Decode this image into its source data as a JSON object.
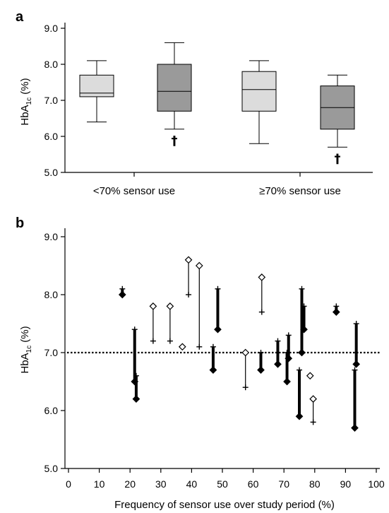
{
  "chart_data": [
    {
      "panel": "a",
      "type": "box",
      "ylabel": "HbA1c (%)",
      "ylim": [
        5.0,
        9.0
      ],
      "yticks": [
        "5.0",
        "6.0",
        "7.0",
        "8.0",
        "9.0"
      ],
      "categories": [
        "<70% sensor use",
        "≥70% sensor use"
      ],
      "marker": "†",
      "colors": {
        "light_box": "#dcdcdc",
        "dark_box": "#9a9a9a"
      },
      "boxes": [
        {
          "group": "<70% sensor use",
          "shade": "light",
          "min": 6.4,
          "q1": 7.1,
          "median": 7.2,
          "q3": 7.7,
          "max": 8.1,
          "marker": false
        },
        {
          "group": "<70% sensor use",
          "shade": "dark",
          "min": 6.2,
          "q1": 6.7,
          "median": 7.25,
          "q3": 8.0,
          "max": 8.6,
          "marker": true
        },
        {
          "group": "≥70% sensor use",
          "shade": "light",
          "min": 5.8,
          "q1": 6.7,
          "median": 7.3,
          "q3": 7.8,
          "max": 8.1,
          "marker": false
        },
        {
          "group": "≥70% sensor use",
          "shade": "dark",
          "min": 5.7,
          "q1": 6.2,
          "median": 6.8,
          "q3": 7.4,
          "max": 7.7,
          "marker": true
        }
      ]
    },
    {
      "panel": "b",
      "type": "paired-scatter",
      "xlabel": "Frequency of sensor use over study period (%)",
      "ylabel": "HbA1c (%)",
      "xlim": [
        0,
        100
      ],
      "ylim": [
        5.0,
        9.0
      ],
      "xticks": [
        "0",
        "10",
        "20",
        "30",
        "40",
        "50",
        "60",
        "70",
        "80",
        "90",
        "100"
      ],
      "yticks": [
        "5.0",
        "6.0",
        "7.0",
        "8.0",
        "9.0"
      ],
      "reference_line": 7.0,
      "pairs": [
        {
          "x": 17.5,
          "start": 8.1,
          "end": 8.0,
          "decrease": true
        },
        {
          "x": 21.5,
          "start": 7.4,
          "end": 6.5,
          "decrease": true
        },
        {
          "x": 22.0,
          "start": 6.6,
          "end": 6.2,
          "decrease": true
        },
        {
          "x": 27.5,
          "start": 7.2,
          "end": 7.8,
          "decrease": false
        },
        {
          "x": 33.0,
          "start": 7.2,
          "end": 7.8,
          "decrease": false
        },
        {
          "x": 37.0,
          "start": 7.1,
          "end": 7.1,
          "decrease": false
        },
        {
          "x": 39.0,
          "start": 8.0,
          "end": 8.6,
          "decrease": false
        },
        {
          "x": 42.5,
          "start": 7.1,
          "end": 8.5,
          "decrease": false
        },
        {
          "x": 47.0,
          "start": 7.1,
          "end": 6.7,
          "decrease": true
        },
        {
          "x": 48.5,
          "start": 8.1,
          "end": 7.4,
          "decrease": true
        },
        {
          "x": 57.5,
          "start": 6.4,
          "end": 7.0,
          "decrease": false
        },
        {
          "x": 62.5,
          "start": 7.0,
          "end": 6.7,
          "decrease": true
        },
        {
          "x": 62.8,
          "start": 7.7,
          "end": 8.3,
          "decrease": false
        },
        {
          "x": 68.0,
          "start": 7.2,
          "end": 6.8,
          "decrease": true
        },
        {
          "x": 71.0,
          "start": 7.0,
          "end": 6.5,
          "decrease": true
        },
        {
          "x": 71.5,
          "start": 7.3,
          "end": 6.9,
          "decrease": true
        },
        {
          "x": 75.0,
          "start": 6.7,
          "end": 5.9,
          "decrease": true
        },
        {
          "x": 75.8,
          "start": 8.1,
          "end": 7.0,
          "decrease": true
        },
        {
          "x": 76.5,
          "start": 7.8,
          "end": 7.4,
          "decrease": true
        },
        {
          "x": 78.5,
          "start": 6.6,
          "end": 6.6,
          "decrease": false
        },
        {
          "x": 79.5,
          "start": 5.8,
          "end": 6.2,
          "decrease": false
        },
        {
          "x": 87.0,
          "start": 7.8,
          "end": 7.7,
          "decrease": true
        },
        {
          "x": 93.0,
          "start": 6.7,
          "end": 5.7,
          "decrease": true
        },
        {
          "x": 93.5,
          "start": 7.5,
          "end": 6.8,
          "decrease": true
        }
      ]
    }
  ]
}
